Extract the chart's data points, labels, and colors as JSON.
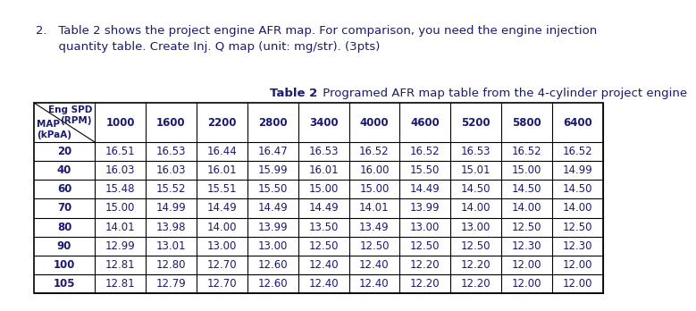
{
  "title_bold": "Table 2",
  "title_normal": " Programed AFR map table from the 4-cylinder project engine",
  "question_line1": "2.   Table 2 shows the project engine AFR map. For comparison, you need the engine injection",
  "question_line2": "      quantity table. Create Inj. Q map (unit: mg/str). (3pts)",
  "col_headers": [
    "1000",
    "1600",
    "2200",
    "2800",
    "3400",
    "4000",
    "4600",
    "5200",
    "5800",
    "6400"
  ],
  "row_headers": [
    "20",
    "40",
    "60",
    "70",
    "80",
    "90",
    "100",
    "105"
  ],
  "header_tl": "Eng SPD\n(RPM)",
  "header_bl": "MAP\n(kPaA)",
  "data": [
    [
      16.51,
      16.53,
      16.44,
      16.47,
      16.53,
      16.52,
      16.52,
      16.53,
      16.52,
      16.52
    ],
    [
      16.03,
      16.03,
      16.01,
      15.99,
      16.01,
      16.0,
      15.5,
      15.01,
      15.0,
      14.99
    ],
    [
      15.48,
      15.52,
      15.51,
      15.5,
      15.0,
      15.0,
      14.49,
      14.5,
      14.5,
      14.5
    ],
    [
      15.0,
      14.99,
      14.49,
      14.49,
      14.49,
      14.01,
      13.99,
      14.0,
      14.0,
      14.0
    ],
    [
      14.01,
      13.98,
      14.0,
      13.99,
      13.5,
      13.49,
      13.0,
      13.0,
      12.5,
      12.5
    ],
    [
      12.99,
      13.01,
      13.0,
      13.0,
      12.5,
      12.5,
      12.5,
      12.5,
      12.3,
      12.3
    ],
    [
      12.81,
      12.8,
      12.7,
      12.6,
      12.4,
      12.4,
      12.2,
      12.2,
      12.0,
      12.0
    ],
    [
      12.81,
      12.79,
      12.7,
      12.6,
      12.4,
      12.4,
      12.2,
      12.2,
      12.0,
      12.0
    ]
  ],
  "text_color": "#1a1a6e",
  "bg_color": "#ffffff",
  "font_family": "DejaVu Sans",
  "font_size_q": 9.5,
  "font_size_title": 9.5,
  "font_size_table": 8.5,
  "font_size_header": 7.5
}
